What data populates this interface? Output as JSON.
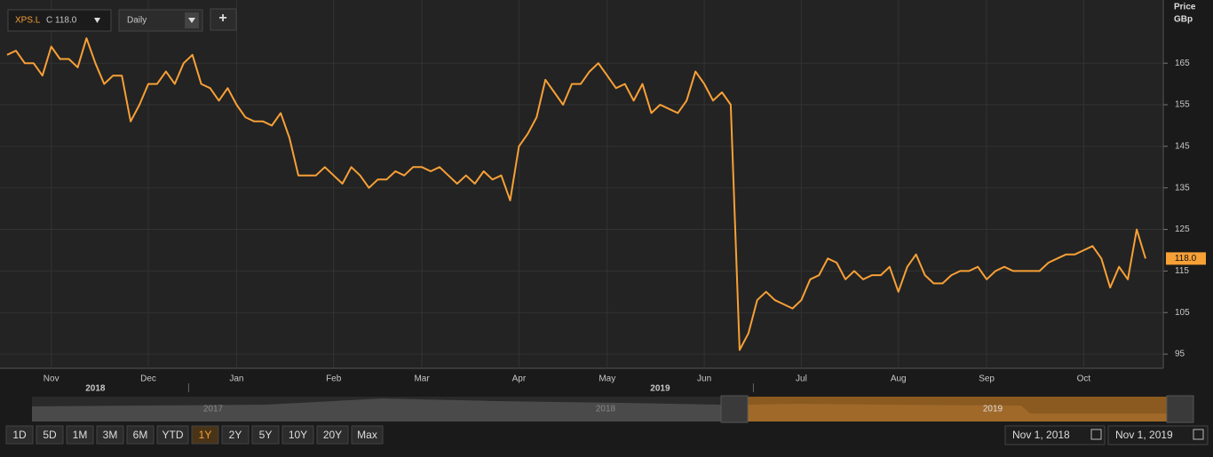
{
  "toolbar": {
    "symbol": "XPS.L",
    "close_text": "C 118.0",
    "interval": "Daily",
    "add": "+"
  },
  "chart_data": {
    "type": "line",
    "axis_title": "Price",
    "axis_unit": "GBp",
    "color": "#f7a036",
    "categories": [
      null,
      null,
      null,
      null,
      null,
      "Nov",
      null,
      null,
      null,
      null,
      null,
      null,
      null,
      null,
      null,
      null,
      "Dec",
      null,
      null,
      null,
      null,
      null,
      null,
      null,
      null,
      null,
      "Jan",
      null,
      null,
      null,
      null,
      null,
      null,
      null,
      null,
      null,
      null,
      "Feb",
      null,
      null,
      null,
      null,
      null,
      null,
      null,
      null,
      null,
      "Mar",
      null,
      null,
      null,
      null,
      null,
      null,
      null,
      null,
      null,
      null,
      "Apr",
      null,
      null,
      null,
      null,
      null,
      null,
      null,
      null,
      null,
      "May",
      null,
      null,
      null,
      null,
      null,
      null,
      null,
      null,
      null,
      null,
      "Jun",
      null,
      null,
      null,
      null,
      null,
      null,
      null,
      null,
      null,
      null,
      "Jul",
      null,
      null,
      null,
      null,
      null,
      null,
      null,
      null,
      null,
      null,
      "Aug",
      null,
      null,
      null,
      null,
      null,
      null,
      null,
      null,
      null,
      "Sep",
      null,
      null,
      null,
      null,
      null,
      null,
      null,
      null,
      null,
      null,
      "Oct",
      null,
      null,
      null,
      null,
      null,
      null,
      null
    ],
    "year_labels": [
      null,
      null,
      null,
      null,
      null,
      null,
      null,
      null,
      null,
      null,
      "2018",
      null,
      null,
      null,
      null,
      null,
      null,
      null,
      null,
      null,
      null,
      null,
      null,
      null,
      null,
      null,
      null,
      null,
      null,
      null,
      null,
      null,
      null,
      null,
      null,
      null,
      null,
      null,
      null,
      null,
      null,
      null,
      null,
      null,
      null,
      null,
      null,
      null,
      null,
      null,
      null,
      null,
      null,
      null,
      null,
      null,
      null,
      null,
      null,
      null,
      null,
      null,
      null,
      null,
      null,
      null,
      null,
      null,
      null,
      null,
      null,
      null,
      null,
      null,
      "2019",
      null,
      null,
      null,
      null,
      null,
      null,
      null,
      null,
      null,
      null,
      null,
      null,
      null,
      null,
      null,
      null,
      null,
      null,
      null,
      null,
      null,
      null,
      null,
      null,
      null,
      null,
      null,
      null,
      null,
      null,
      null,
      null,
      null,
      null,
      null,
      null,
      null,
      null,
      null,
      null,
      null,
      null,
      null,
      null,
      null,
      null,
      null,
      null,
      null,
      null,
      null,
      null,
      null,
      null,
      null
    ],
    "values": [
      167,
      168,
      165,
      165,
      162,
      169,
      166,
      166,
      164,
      171,
      165,
      160,
      162,
      162,
      151,
      155,
      160,
      160,
      163,
      160,
      165,
      167,
      160,
      159,
      156,
      159,
      155,
      152,
      151,
      151,
      150,
      153,
      147,
      138,
      138,
      138,
      140,
      138,
      136,
      140,
      138,
      135,
      137,
      137,
      139,
      138,
      140,
      140,
      139,
      140,
      138,
      136,
      138,
      136,
      139,
      137,
      138,
      132,
      145,
      148,
      152,
      161,
      158,
      155,
      160,
      160,
      163,
      165,
      162,
      159,
      160,
      156,
      160,
      153,
      155,
      154,
      153,
      156,
      163,
      160,
      156,
      158,
      155,
      96,
      100,
      108,
      110,
      108,
      107,
      106,
      108,
      113,
      114,
      118,
      117,
      113,
      115,
      113,
      114,
      114,
      116,
      110,
      116,
      119,
      114,
      112,
      112,
      114,
      115,
      115,
      116,
      113,
      115,
      116,
      115,
      115,
      115,
      115,
      117,
      118,
      119,
      119,
      120,
      121,
      118,
      111,
      116,
      113,
      125,
      118
    ],
    "last_label": "118.0",
    "ylim": [
      91.6,
      180.2
    ],
    "yticks": [
      95,
      105,
      115,
      125,
      135,
      145,
      155,
      165
    ],
    "grid": true
  },
  "navigator": {
    "labels": [
      "2017",
      "2018",
      "2019"
    ]
  },
  "ranges": [
    "1D",
    "5D",
    "1M",
    "3M",
    "6M",
    "YTD",
    "1Y",
    "2Y",
    "5Y",
    "10Y",
    "20Y",
    "Max"
  ],
  "active_range": "1Y",
  "date_from": "Nov 1, 2018",
  "date_to": "Nov 1, 2019"
}
